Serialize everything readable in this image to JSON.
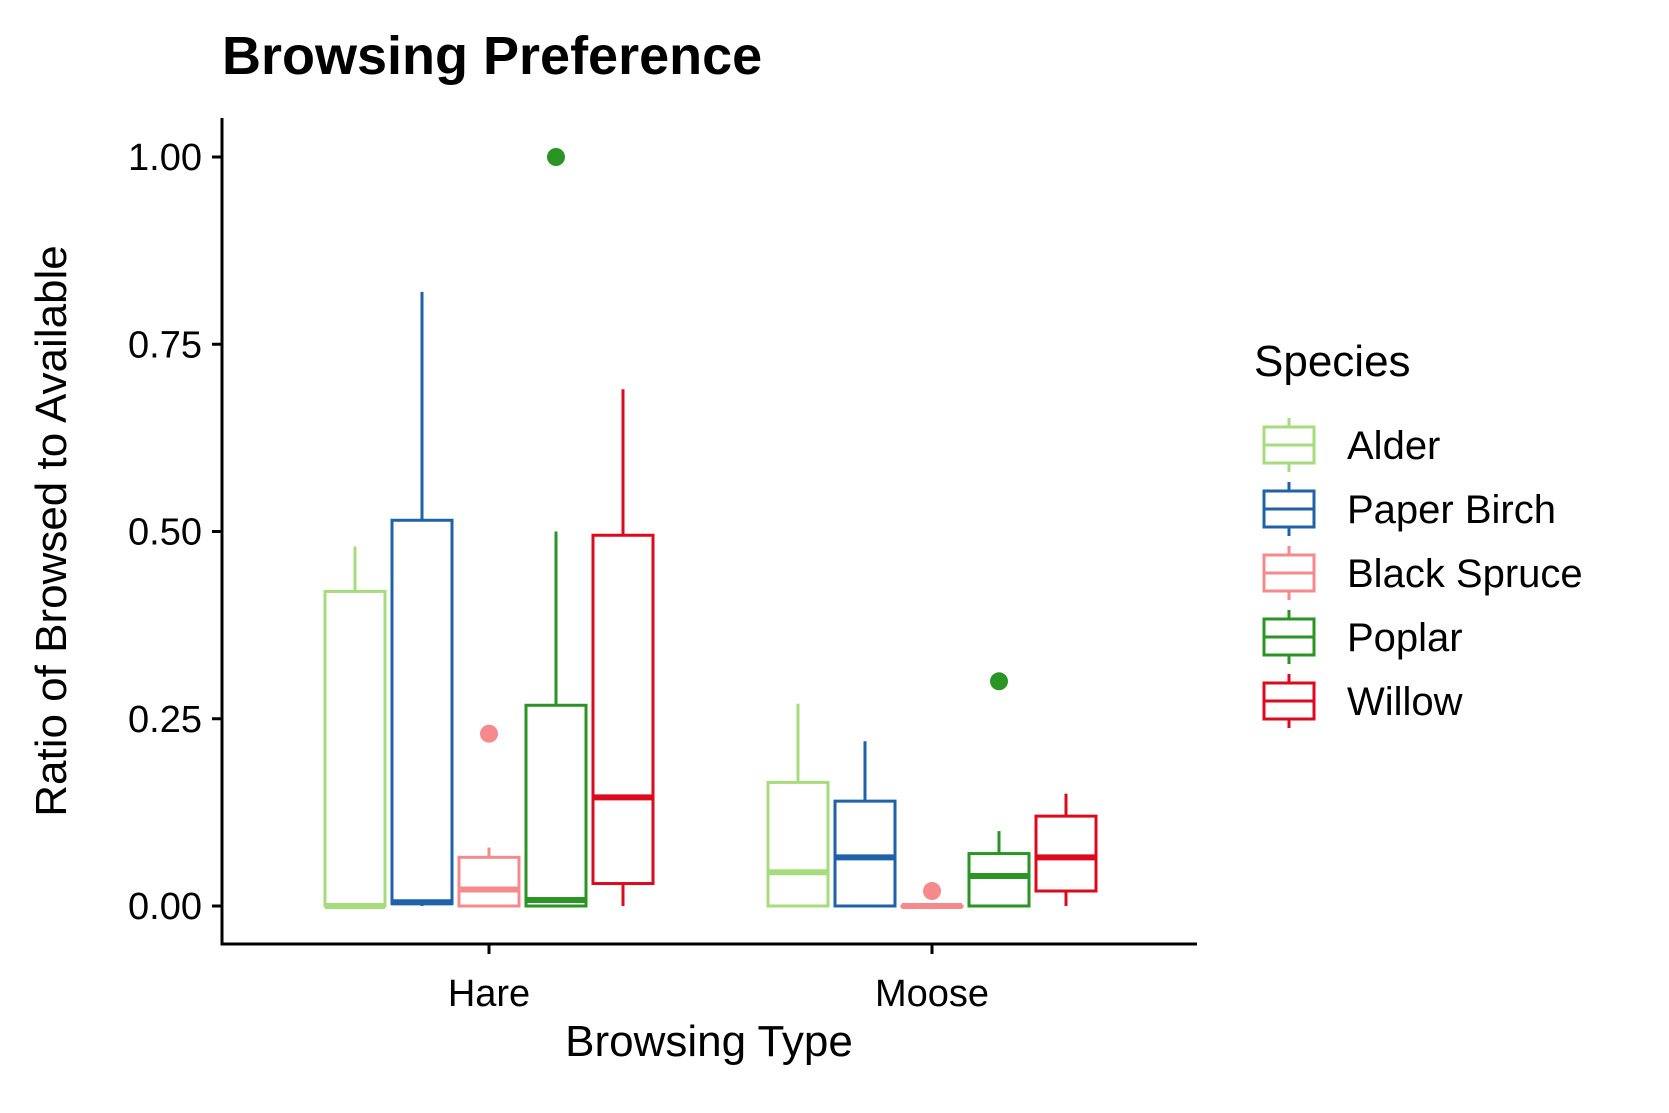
{
  "chart_data": {
    "type": "boxplot",
    "title": "Browsing Preference",
    "xlabel": "Browsing Type",
    "ylabel": "Ratio of Browsed to Available",
    "categories": [
      "Hare",
      "Moose"
    ],
    "ylim": [
      -0.05,
      1.05
    ],
    "yticks": [
      0,
      0.25,
      0.5,
      0.75,
      1
    ],
    "ytick_labels": [
      "0.00",
      "0.25",
      "0.50",
      "0.75",
      "1.00"
    ],
    "grid": false,
    "legend": {
      "title": "Species",
      "position": "right"
    },
    "series": [
      {
        "name": "Alder",
        "color": "#a6dc7c",
        "boxes": [
          {
            "category": "Hare",
            "min": 0,
            "q1": 0,
            "median": 0,
            "q3": 0.42,
            "max": 0.48,
            "outliers": []
          },
          {
            "category": "Moose",
            "min": 0,
            "q1": 0,
            "median": 0.045,
            "q3": 0.165,
            "max": 0.27,
            "outliers": []
          }
        ]
      },
      {
        "name": "Paper Birch",
        "color": "#1f62a8",
        "boxes": [
          {
            "category": "Hare",
            "min": 0,
            "q1": 0.003,
            "median": 0.005,
            "q3": 0.515,
            "max": 0.82,
            "outliers": []
          },
          {
            "category": "Moose",
            "min": 0,
            "q1": 0,
            "median": 0.065,
            "q3": 0.14,
            "max": 0.22,
            "outliers": []
          }
        ]
      },
      {
        "name": "Black Spruce",
        "color": "#f48a8c",
        "boxes": [
          {
            "category": "Hare",
            "min": 0,
            "q1": 0,
            "median": 0.022,
            "q3": 0.065,
            "max": 0.078,
            "outliers": [
              0.23
            ]
          },
          {
            "category": "Moose",
            "min": 0,
            "q1": 0,
            "median": 0,
            "q3": 0,
            "max": 0,
            "outliers": [
              0.02
            ]
          }
        ]
      },
      {
        "name": "Poplar",
        "color": "#2a9424",
        "boxes": [
          {
            "category": "Hare",
            "min": 0,
            "q1": 0,
            "median": 0.008,
            "q3": 0.268,
            "max": 0.5,
            "outliers": [
              1.0
            ]
          },
          {
            "category": "Moose",
            "min": 0,
            "q1": 0,
            "median": 0.04,
            "q3": 0.07,
            "max": 0.1,
            "outliers": [
              0.3
            ]
          }
        ]
      },
      {
        "name": "Willow",
        "color": "#dc0a1e",
        "boxes": [
          {
            "category": "Hare",
            "min": 0,
            "q1": 0.03,
            "median": 0.145,
            "q3": 0.495,
            "max": 0.69,
            "outliers": []
          },
          {
            "category": "Moose",
            "min": 0,
            "q1": 0.02,
            "median": 0.065,
            "q3": 0.12,
            "max": 0.15,
            "outliers": []
          }
        ]
      }
    ]
  }
}
